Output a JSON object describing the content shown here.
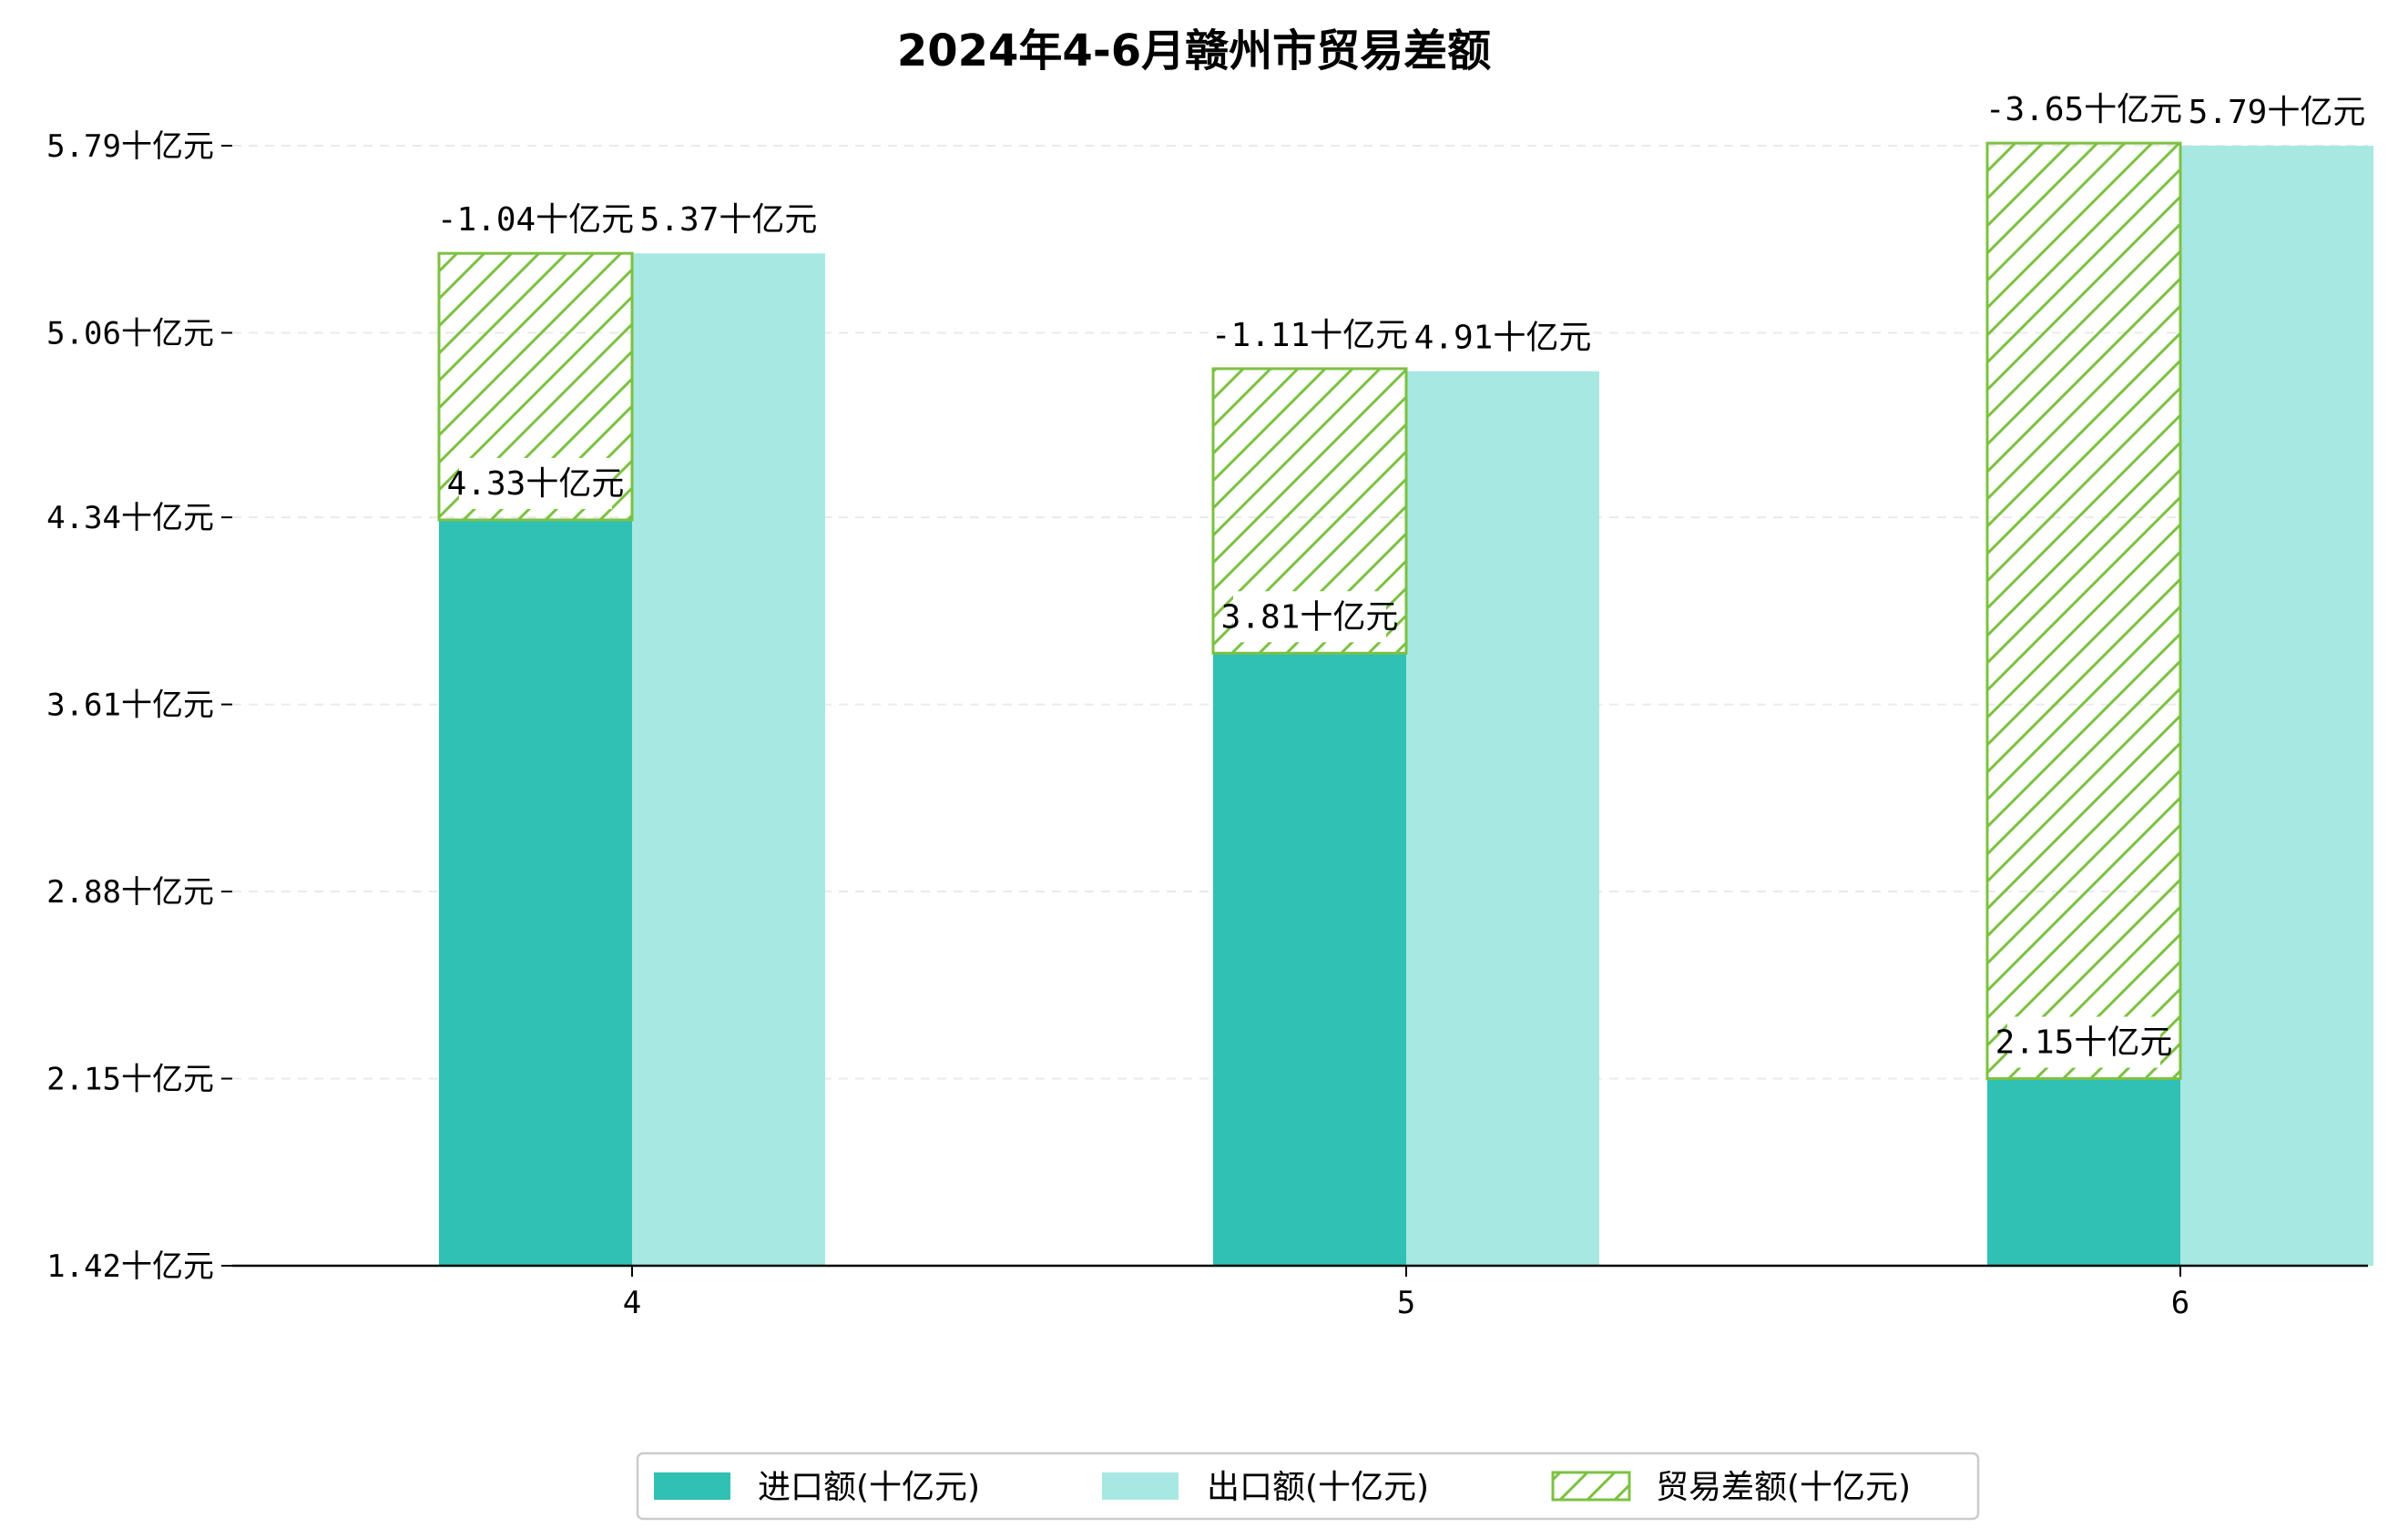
{
  "chart_data": {
    "type": "bar",
    "title": "2024年4-6月赣州市贸易差额",
    "xlabel": "",
    "ylabel": "",
    "categories": [
      "4",
      "5",
      "6"
    ],
    "series": [
      {
        "name": "进口额(十亿元)",
        "values": [
          4.33,
          3.81,
          2.15
        ],
        "color": "#31c0b4",
        "labels": [
          "4.33十亿元",
          "3.81十亿元",
          "2.15十亿元"
        ]
      },
      {
        "name": "出口额(十亿元)",
        "values": [
          5.37,
          4.91,
          5.79
        ],
        "color": "#a8e8e2",
        "labels": [
          "5.37十亿元",
          "4.91十亿元",
          "5.79十亿元"
        ]
      },
      {
        "name": "贸易差额(十亿元)",
        "values": [
          -1.04,
          -1.11,
          -3.65
        ],
        "color": "#7cc142",
        "pattern": "hatch",
        "labels": [
          "-1.04十亿元",
          "-1.11十亿元",
          "-3.65十亿元"
        ]
      }
    ],
    "yticks": [
      1.42,
      2.15,
      2.88,
      3.61,
      4.34,
      5.06,
      5.79
    ],
    "ytick_labels": [
      "1.42十亿元",
      "2.15十亿元",
      "2.88十亿元",
      "3.61十亿元",
      "4.34十亿元",
      "5.06十亿元",
      "5.79十亿元"
    ],
    "ylim": [
      1.42,
      5.79
    ],
    "grid": "y-dashed",
    "legend_position": "bottom-center"
  }
}
